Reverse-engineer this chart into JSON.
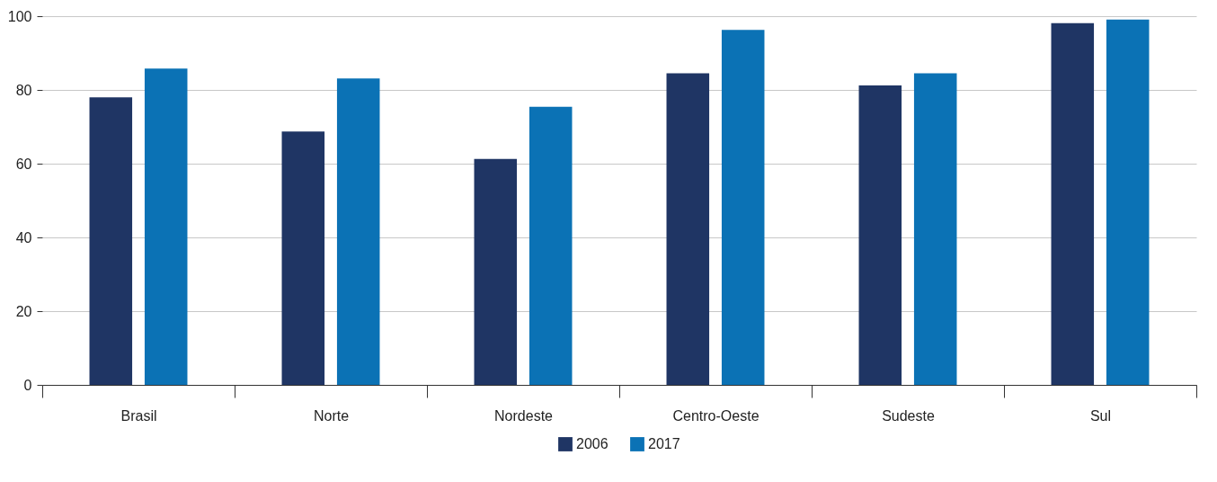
{
  "chart_data": {
    "type": "bar",
    "categories": [
      "Brasil",
      "Norte",
      "Nordeste",
      "Centro-Oeste",
      "Sudeste",
      "Sul"
    ],
    "series": [
      {
        "name": "2006",
        "color": "#1f3564",
        "values": [
          78,
          68.7,
          61.3,
          84.5,
          81.2,
          98.1
        ]
      },
      {
        "name": "2017",
        "color": "#0b72b5",
        "values": [
          85.8,
          83.1,
          75.4,
          96.3,
          84.5,
          99.1
        ]
      }
    ],
    "ylim": [
      0,
      100
    ],
    "yticks": [
      0,
      20,
      40,
      60,
      80,
      100
    ],
    "grid": "y",
    "legend": "bottom"
  }
}
